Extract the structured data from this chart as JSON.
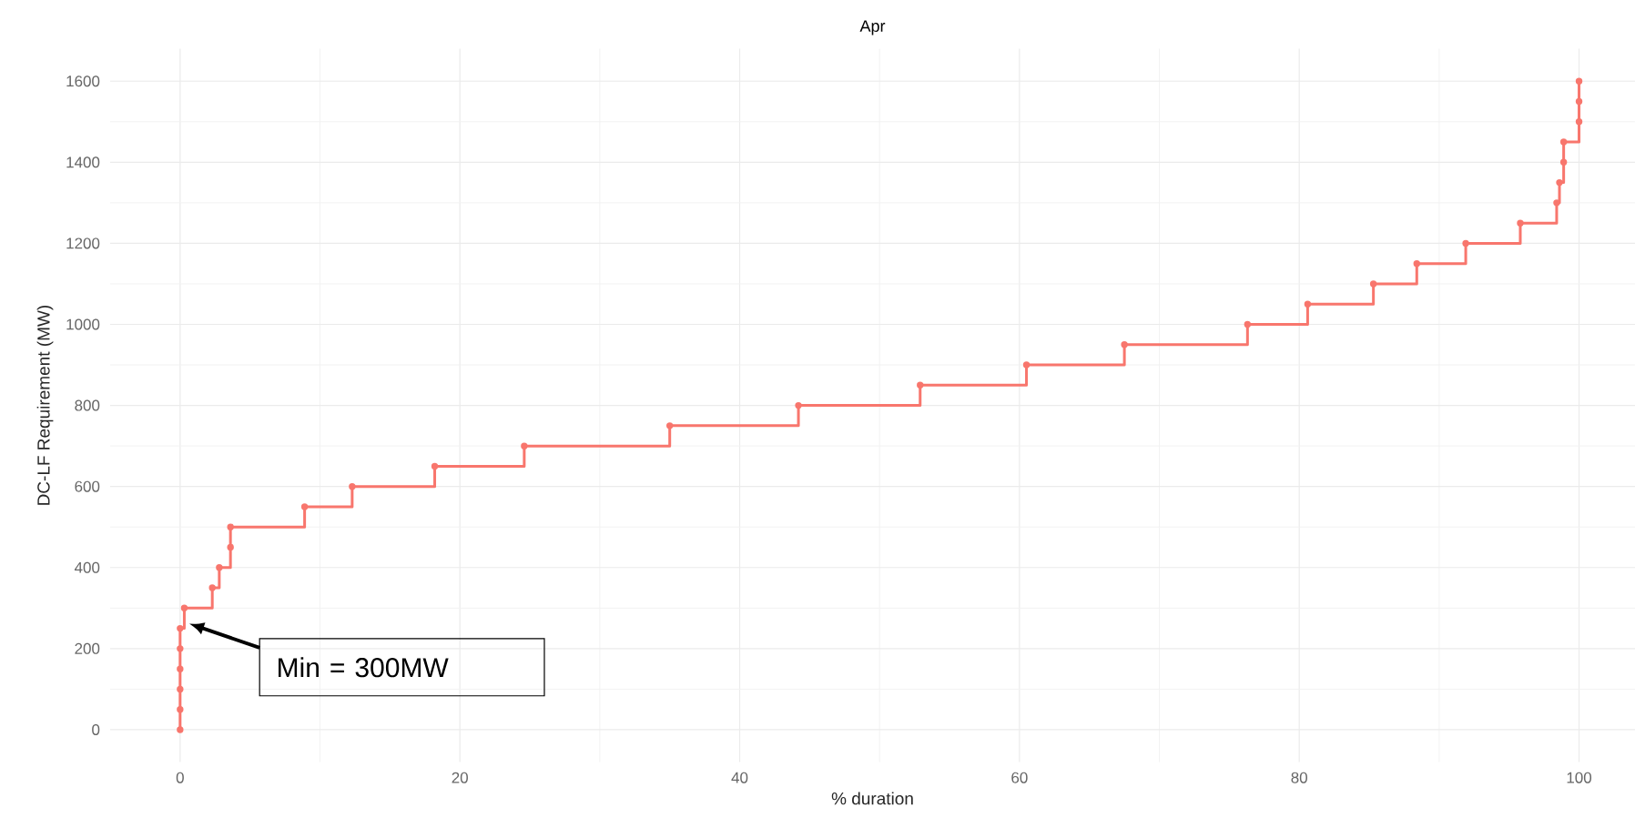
{
  "chart_data": {
    "type": "step",
    "title": "Apr",
    "xlabel": "% duration",
    "ylabel": "DC-LF Requirement (MW)",
    "x": [
      0,
      0,
      0,
      0,
      0,
      0,
      0.3,
      2.3,
      2.8,
      3.6,
      3.6,
      8.9,
      12.3,
      18.2,
      24.6,
      35.0,
      44.2,
      52.9,
      60.5,
      67.5,
      76.3,
      80.6,
      85.3,
      88.4,
      91.9,
      95.8,
      98.4,
      98.6,
      98.9,
      98.9,
      100,
      100,
      100
    ],
    "values": [
      0,
      50,
      100,
      150,
      200,
      250,
      300,
      350,
      400,
      450,
      500,
      550,
      600,
      650,
      700,
      750,
      800,
      850,
      900,
      950,
      1000,
      1050,
      1100,
      1150,
      1200,
      1250,
      1300,
      1350,
      1400,
      1450,
      1500,
      1550,
      1600
    ],
    "color": "#f8766d",
    "marker": "circle",
    "line_style": "solid",
    "xlim": [
      -5,
      104
    ],
    "ylim": [
      -80,
      1680
    ],
    "xticks": [
      0,
      20,
      40,
      60,
      80,
      100
    ],
    "yticks": [
      0,
      200,
      400,
      600,
      800,
      1000,
      1200,
      1400,
      1600
    ],
    "grid": true,
    "annotations": [
      "Min = 300MW"
    ]
  }
}
